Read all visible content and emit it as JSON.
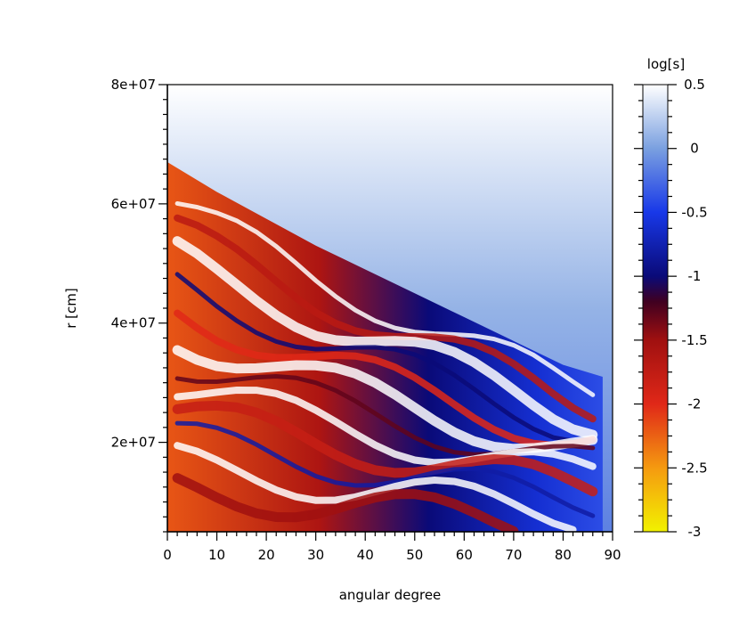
{
  "chart_data": {
    "type": "heatmap",
    "title": "",
    "xlabel": "angular degree",
    "ylabel": "r [cm]",
    "xlim": [
      0,
      90
    ],
    "ylim": [
      5000000,
      80000000
    ],
    "x_ticks": [
      0,
      10,
      20,
      30,
      40,
      50,
      60,
      70,
      80,
      90
    ],
    "x_tick_labels": [
      "0",
      "10",
      "20",
      "30",
      "40",
      "50",
      "60",
      "70",
      "80",
      "90"
    ],
    "y_ticks": [
      20000000,
      40000000,
      60000000,
      80000000
    ],
    "y_tick_labels": [
      "2e+07",
      "4e+07",
      "6e+07",
      "8e+07"
    ],
    "colorbar": {
      "label": "log[s]",
      "range": [
        -3,
        0.5
      ],
      "ticks": [
        0.5,
        0,
        -0.5,
        -1,
        -1.5,
        -2,
        -2.5,
        -3
      ],
      "tick_labels": [
        "0.5",
        "0",
        "-0.5",
        "-1",
        "-1.5",
        "-2",
        "-2.5",
        "-3"
      ],
      "colormap_stops": [
        {
          "value": -3.0,
          "color": "#f2f200"
        },
        {
          "value": -2.5,
          "color": "#f59a10"
        },
        {
          "value": -2.0,
          "color": "#e02818"
        },
        {
          "value": -1.5,
          "color": "#a01010"
        },
        {
          "value": -1.2,
          "color": "#400020"
        },
        {
          "value": -1.0,
          "color": "#0a0a78"
        },
        {
          "value": -0.5,
          "color": "#1838e8"
        },
        {
          "value": 0.0,
          "color": "#7aa0e0"
        },
        {
          "value": 0.5,
          "color": "#ffffff"
        }
      ]
    },
    "features": {
      "boundary": {
        "angle": [
          0,
          10,
          20,
          30,
          40,
          50,
          60,
          70,
          80,
          88
        ],
        "r": [
          67000000,
          62000000,
          57500000,
          53000000,
          49000000,
          45000000,
          41000000,
          37000000,
          33000000,
          31000000
        ]
      },
      "background_log_s": 0.1,
      "interior_log_s_range": [
        -3,
        0.5
      ]
    }
  }
}
